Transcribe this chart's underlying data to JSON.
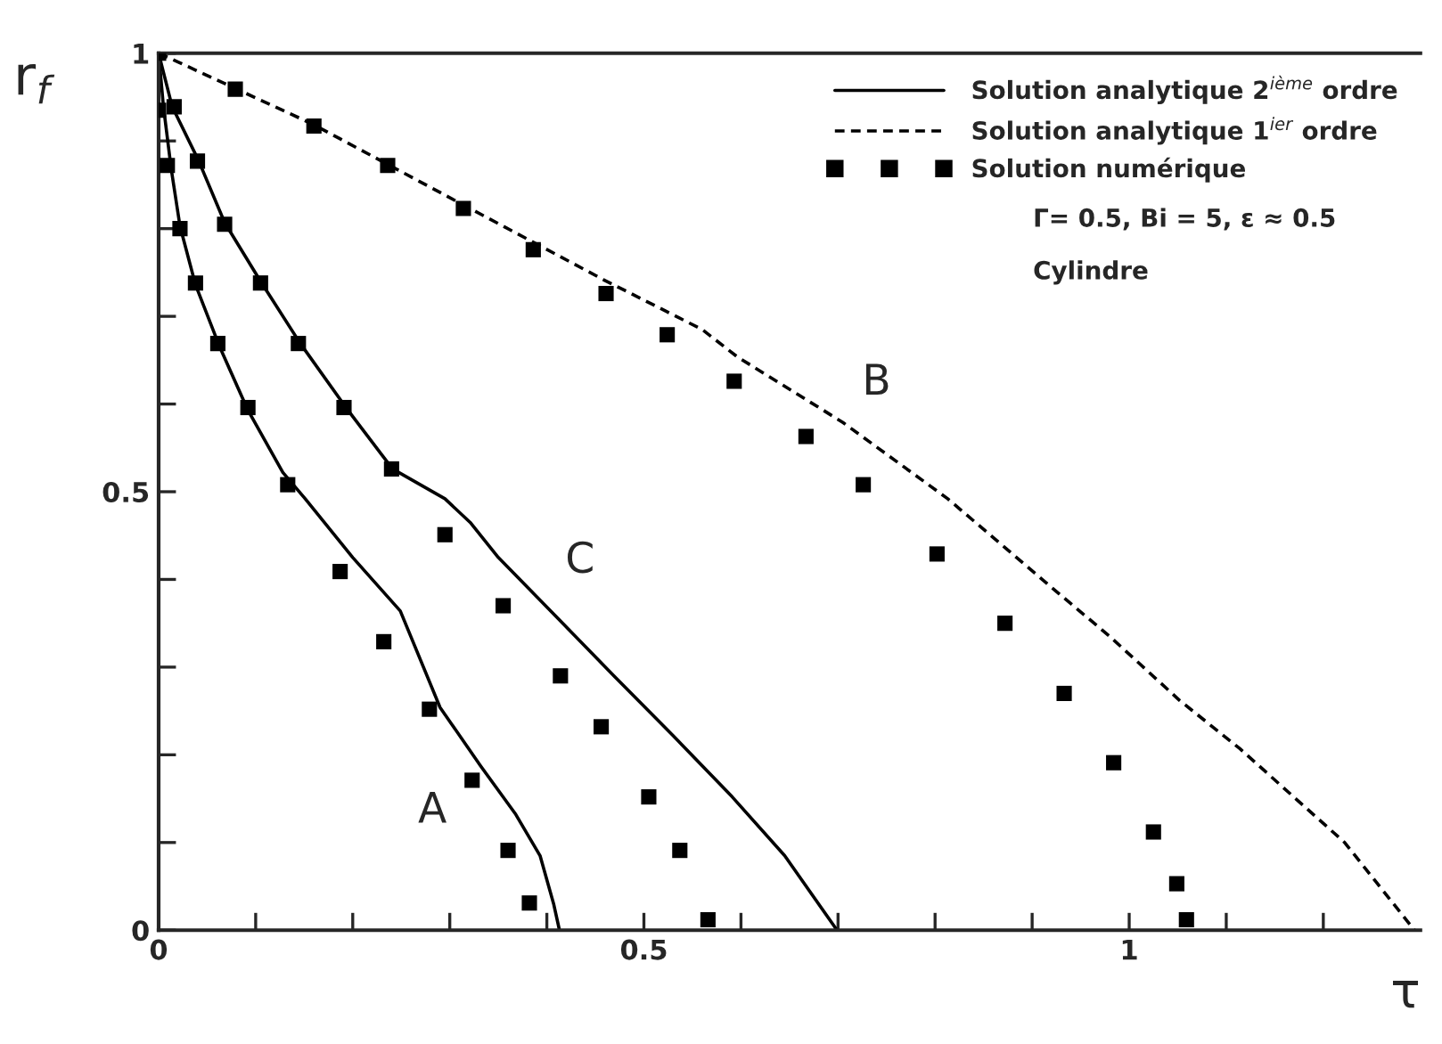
{
  "chart_data": {
    "type": "line",
    "xlabel": "τ",
    "ylabel": "r$_{f}$",
    "xlim": [
      0,
      1.3
    ],
    "ylim": [
      0,
      1
    ],
    "xticks": [
      0,
      {
        "value": 0.1,
        "label": null
      },
      {
        "value": 0.2,
        "label": null
      },
      {
        "value": 0.3,
        "label": null
      },
      {
        "value": 0.4,
        "label": null
      },
      0.5,
      {
        "value": 0.6,
        "label": null
      },
      {
        "value": 0.7,
        "label": null
      },
      {
        "value": 0.8,
        "label": null
      },
      {
        "value": 0.9,
        "label": null
      },
      1,
      {
        "value": 1.1,
        "label": null
      },
      {
        "value": 1.2,
        "label": null
      }
    ],
    "yticks": [
      0,
      {
        "value": 0.1,
        "label": null
      },
      {
        "value": 0.2,
        "label": null
      },
      {
        "value": 0.3,
        "label": null
      },
      {
        "value": 0.4,
        "label": null
      },
      0.5,
      {
        "value": 0.6,
        "label": null
      },
      {
        "value": 0.7,
        "label": null
      },
      {
        "value": 0.8,
        "label": null
      },
      {
        "value": 0.9,
        "label": null
      },
      1
    ],
    "grid": false,
    "legend": "top right",
    "series": [
      {
        "name": "Solution analytique 2$^{ième}$ ordre",
        "line_style": "solid",
        "marker": "none",
        "color": "#000000",
        "x": [
          0,
          0.005,
          0.013,
          0.022,
          0.038,
          0.063,
          0.092,
          0.128,
          0.151,
          0.2,
          0.249,
          0.29,
          0.332,
          0.368,
          0.393,
          0.407,
          0.413
        ],
        "values": [
          1,
          0.939,
          0.868,
          0.803,
          0.736,
          0.665,
          0.593,
          0.522,
          0.492,
          0.425,
          0.364,
          0.254,
          0.187,
          0.132,
          0.085,
          0.03,
          0
        ]
      },
      {
        "name": "Solution analytique 1$^{ier}$ ordre",
        "line_style": "dashed",
        "marker": "none",
        "color": "#000000",
        "x": [
          0,
          0.02,
          0.159,
          0.314,
          0.458,
          0.56,
          0.596,
          0.705,
          0.813,
          0.921,
          0.98,
          1.052,
          1.114,
          1.222,
          1.294
        ],
        "values": [
          1,
          0.99,
          0.919,
          0.827,
          0.742,
          0.685,
          0.654,
          0.579,
          0.492,
          0.39,
          0.335,
          0.262,
          0.207,
          0.1,
          0
        ]
      },
      {
        "name": "Solution numérique",
        "type": "scatter",
        "marker": "square",
        "color": "#000000",
        "x": [
          0,
          0,
          0.009,
          0.022,
          0.038,
          0.061,
          0.092,
          0.133,
          0.187,
          0.232,
          0.279,
          0.323,
          0.36,
          0.382
        ],
        "values": [
          1,
          0.935,
          0.872,
          0.8,
          0.738,
          0.669,
          0.596,
          0.508,
          0.409,
          0.329,
          0.252,
          0.171,
          0.091,
          0.031
        ]
      },
      {
        "line_style": "solid",
        "marker": "none",
        "color": "#000000",
        "x": [
          0,
          0.014,
          0.041,
          0.068,
          0.105,
          0.146,
          0.195,
          0.241,
          0.295,
          0.321,
          0.35,
          0.411,
          0.47,
          0.53,
          0.591,
          0.645,
          0.699
        ],
        "values": [
          1,
          0.939,
          0.878,
          0.807,
          0.74,
          0.669,
          0.593,
          0.526,
          0.492,
          0.465,
          0.425,
          0.356,
          0.289,
          0.222,
          0.152,
          0.085,
          0
        ]
      },
      {
        "type": "scatter",
        "marker": "square",
        "color": "#000000",
        "x": [
          0.016,
          0.04,
          0.068,
          0.105,
          0.144,
          0.191,
          0.24,
          0.295,
          0.355,
          0.414,
          0.456,
          0.505,
          0.537,
          0.566
        ],
        "values": [
          0.939,
          0.877,
          0.805,
          0.738,
          0.669,
          0.596,
          0.526,
          0.451,
          0.37,
          0.29,
          0.232,
          0.152,
          0.091,
          0.012
        ]
      },
      {
        "type": "scatter",
        "marker": "square",
        "color": "#000000",
        "x": [
          0.079,
          0.16,
          0.236,
          0.314,
          0.386,
          0.461,
          0.524,
          0.593,
          0.667,
          0.726,
          0.802,
          0.872,
          0.933,
          0.984,
          1.025,
          1.049,
          1.059
        ],
        "values": [
          0.959,
          0.917,
          0.872,
          0.823,
          0.776,
          0.726,
          0.679,
          0.626,
          0.563,
          0.508,
          0.429,
          0.35,
          0.27,
          0.191,
          0.112,
          0.053,
          0.012
        ]
      }
    ],
    "annotations": [
      "Γ= 0.5, Bi = 5, ε ≈ 0.5",
      "Cylindre",
      "A",
      "B",
      "C"
    ]
  }
}
